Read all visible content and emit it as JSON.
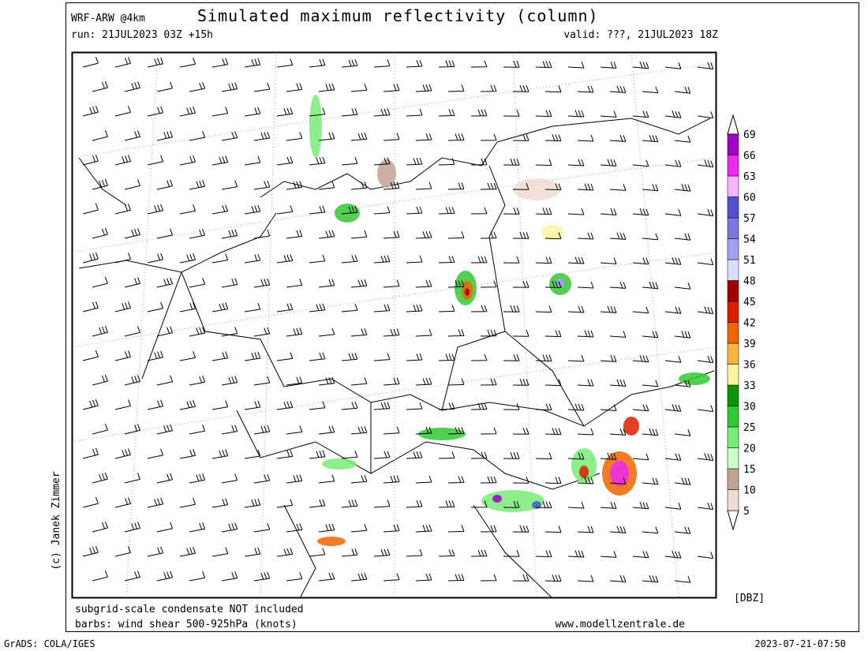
{
  "header": {
    "model": "WRF-ARW @4km",
    "title": "Simulated maximum reflectivity (column)",
    "run": "run: 21JUL2023 03Z +15h",
    "valid": "valid: ???, 21JUL2023 18Z"
  },
  "colorbar": {
    "levels": [
      5,
      10,
      15,
      20,
      25,
      30,
      33,
      36,
      39,
      42,
      45,
      48,
      51,
      54,
      57,
      60,
      63,
      66,
      69
    ],
    "colors": [
      "#f0dcd2",
      "#c4a294",
      "#c8fcc8",
      "#78ec78",
      "#32c832",
      "#0a960a",
      "#fcf4a0",
      "#f8b43c",
      "#f06400",
      "#e01c00",
      "#a00000",
      "#dcdcfc",
      "#a0a0f0",
      "#7878e0",
      "#5050d0",
      "#f8b4f8",
      "#f028f0",
      "#a000c8"
    ],
    "unit": "[DBZ]"
  },
  "footer": {
    "note1": "subgrid-scale condensate NOT included",
    "note2": "barbs: wind shear 500-925hPa (knots)",
    "site": "www.modellzentrale.de",
    "copyright": "(c) Janek Zimmer",
    "grads": "GrADS: COLA/IGES",
    "timestamp": "2023-07-21-07:50"
  }
}
